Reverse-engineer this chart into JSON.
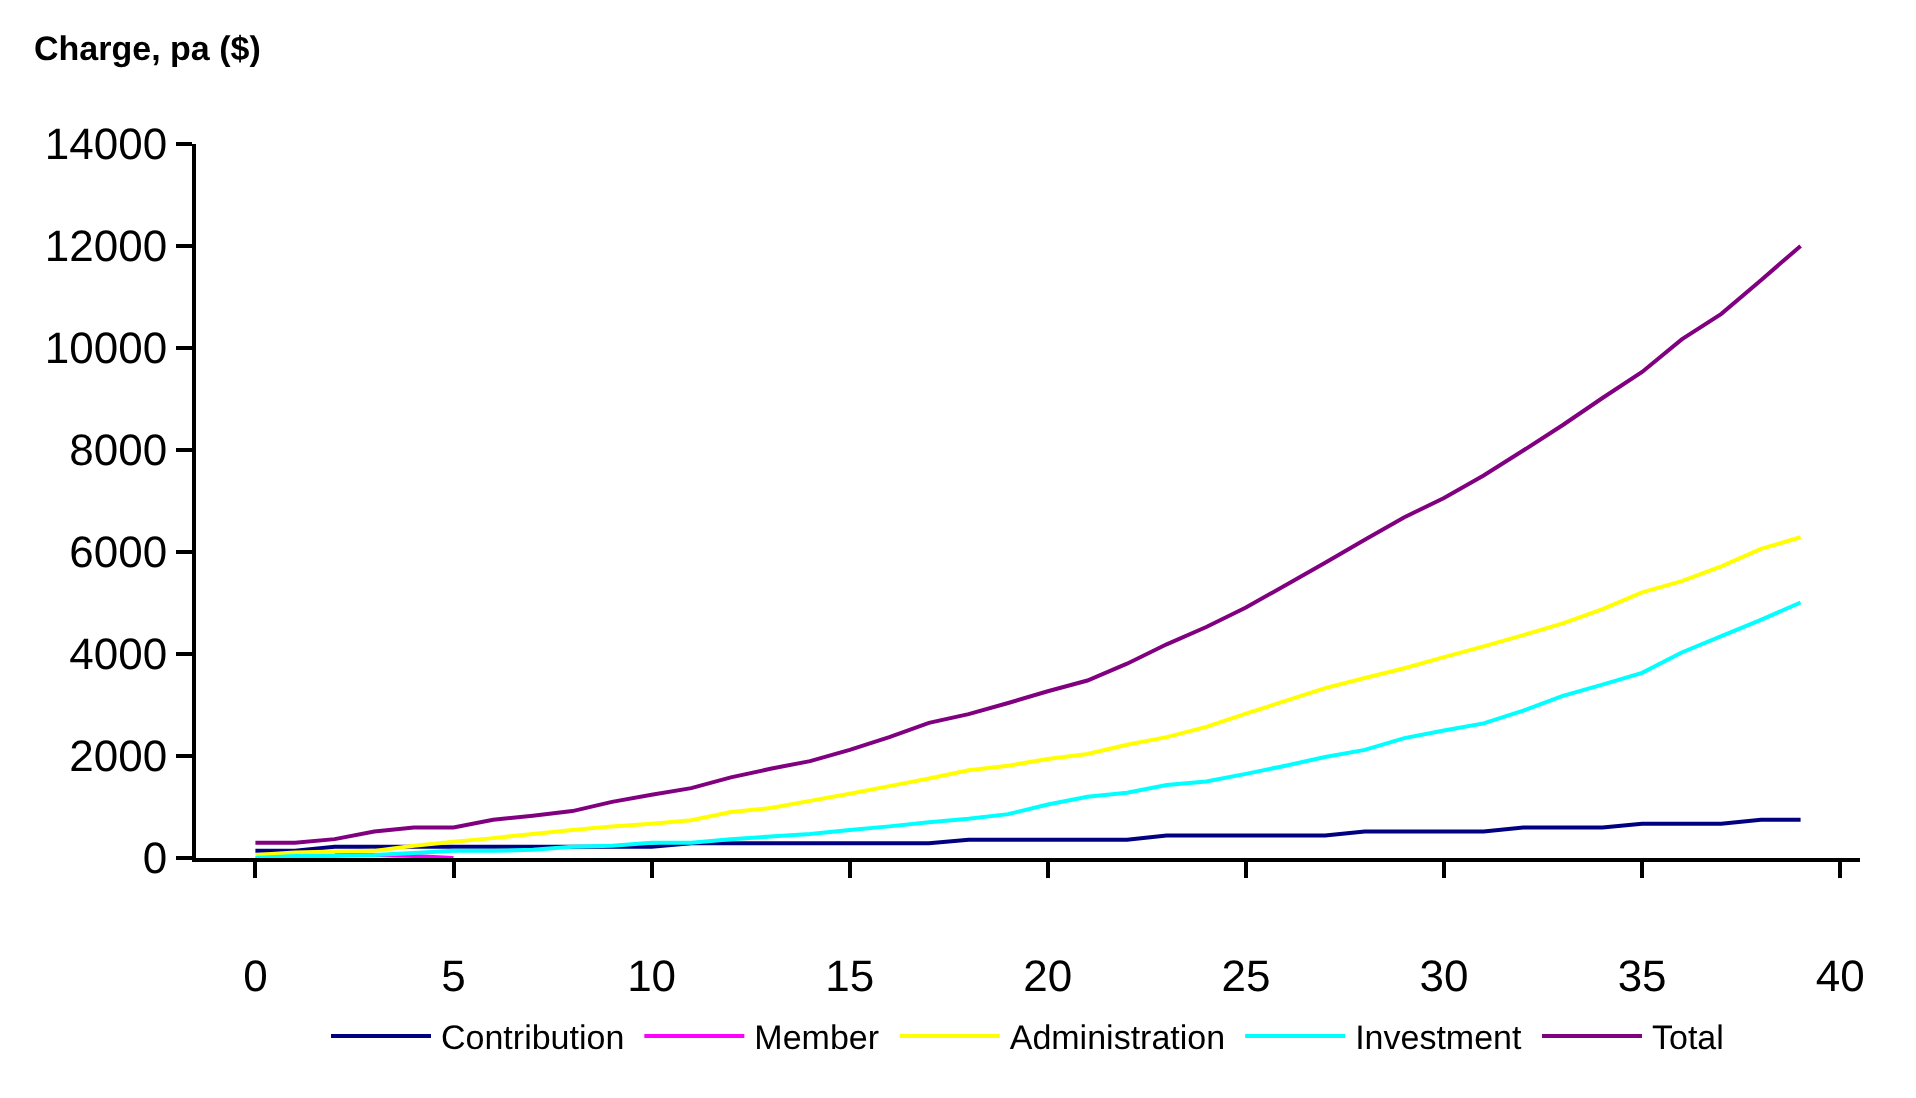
{
  "chart_data": {
    "type": "line",
    "ylabel": "Charge, pa ($)",
    "x": [
      0,
      1,
      2,
      3,
      4,
      5,
      6,
      7,
      8,
      9,
      10,
      11,
      12,
      13,
      14,
      15,
      16,
      17,
      18,
      19,
      20,
      21,
      22,
      23,
      24,
      25,
      26,
      27,
      28,
      29,
      30,
      31,
      32,
      33,
      34,
      35,
      36,
      37,
      38,
      39
    ],
    "series": [
      {
        "name": "Contribution",
        "color": "#000080",
        "values": [
          140,
          140,
          220,
          220,
          220,
          220,
          220,
          220,
          220,
          220,
          220,
          290,
          290,
          290,
          290,
          290,
          290,
          290,
          360,
          360,
          360,
          360,
          360,
          440,
          440,
          440,
          440,
          440,
          520,
          520,
          520,
          520,
          600,
          600,
          600,
          670,
          670,
          670,
          750,
          750
        ]
      },
      {
        "name": "Member",
        "color": "#ff00ff",
        "values": [
          null,
          null,
          60,
          60,
          40,
          0,
          null,
          null,
          null,
          null,
          null,
          null,
          null,
          null,
          null,
          null,
          null,
          null,
          null,
          null,
          null,
          null,
          null,
          null,
          null,
          null,
          null,
          null,
          null,
          null,
          null,
          null,
          null,
          null,
          null,
          null,
          null,
          null,
          null,
          null
        ]
      },
      {
        "name": "Administration",
        "color": "#ffff00",
        "values": [
          60,
          110,
          130,
          140,
          240,
          320,
          390,
          470,
          550,
          620,
          670,
          740,
          900,
          980,
          1120,
          1260,
          1410,
          1560,
          1720,
          1810,
          1940,
          2040,
          2220,
          2370,
          2570,
          2830,
          3080,
          3330,
          3530,
          3720,
          3940,
          4150,
          4370,
          4600,
          4880,
          5210,
          5430,
          5720,
          6060,
          6290
        ]
      },
      {
        "name": "Investment",
        "color": "#00ffff",
        "values": [
          0,
          40,
          40,
          60,
          100,
          140,
          140,
          160,
          220,
          240,
          300,
          300,
          370,
          420,
          470,
          550,
          620,
          700,
          770,
          860,
          1050,
          1200,
          1280,
          1430,
          1500,
          1650,
          1810,
          1980,
          2120,
          2350,
          2500,
          2640,
          2890,
          3180,
          3400,
          3630,
          4030,
          4350,
          4670,
          5010
        ]
      },
      {
        "name": "Total",
        "color": "#800080",
        "values": [
          300,
          300,
          370,
          520,
          600,
          600,
          750,
          830,
          920,
          1100,
          1240,
          1370,
          1580,
          1750,
          1900,
          2120,
          2370,
          2650,
          2820,
          3040,
          3270,
          3480,
          3810,
          4190,
          4530,
          4910,
          5350,
          5790,
          6240,
          6680,
          7060,
          7500,
          7990,
          8490,
          9020,
          9530,
          10170,
          10670,
          11330,
          12000
        ]
      }
    ],
    "xlim": [
      -1.5,
      40.5
    ],
    "xticks": [
      0,
      5,
      10,
      15,
      20,
      25,
      30,
      35,
      40
    ],
    "ylim": [
      0,
      14000
    ],
    "yticks": [
      0,
      2000,
      4000,
      6000,
      8000,
      10000,
      12000,
      14000
    ],
    "grid": false,
    "legend": "bottom",
    "marker": "none",
    "line_style": "solid"
  }
}
